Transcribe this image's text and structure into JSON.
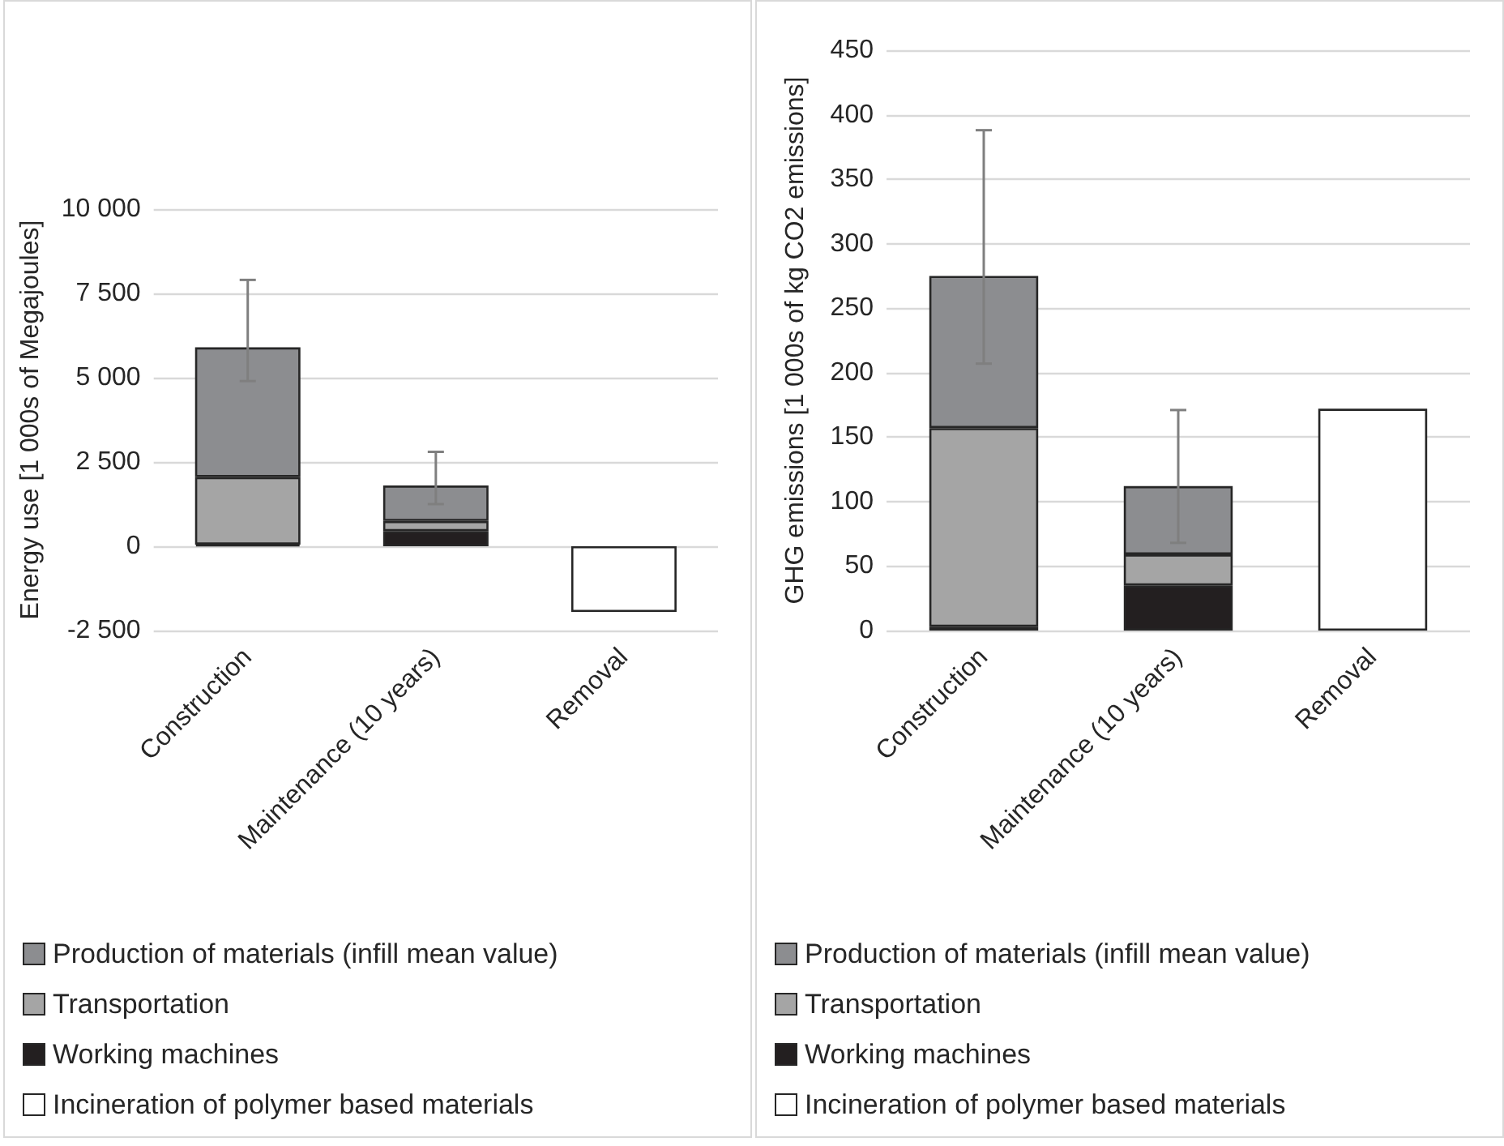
{
  "chart_data": [
    {
      "type": "bar",
      "stacked": true,
      "categories": [
        "Construction",
        "Maintenance (10 years)",
        "Removal"
      ],
      "ylabel": "Energy use [1 000s of Megajoules]",
      "ylim": [
        -2500,
        10000
      ],
      "yticks": [
        {
          "value": -2500,
          "label": "-2 500"
        },
        0,
        {
          "value": 2500,
          "label": "2 500"
        },
        {
          "value": 5000,
          "label": "5 000"
        },
        {
          "value": 7500,
          "label": "7 500"
        },
        {
          "value": 10000,
          "label": "10 000"
        }
      ],
      "grid": "y",
      "legend": "bottom",
      "series": [
        {
          "name": "Working machines",
          "color": "#231f20",
          "values": [
            50,
            450,
            0
          ]
        },
        {
          "name": "Transportation",
          "color": "#a5a5a5",
          "values": [
            2000,
            300,
            0
          ]
        },
        {
          "name": "Production of materials (infill mean value)",
          "color": "#8c8d90",
          "values": [
            3850,
            1050,
            0
          ],
          "errors": [
            [
              4900,
              7900
            ],
            [
              1250,
              2800
            ],
            null
          ]
        },
        {
          "name": "Incineration of polymer based materials",
          "color": "#ffffff",
          "values": [
            0,
            0,
            -1950
          ]
        }
      ]
    },
    {
      "type": "bar",
      "stacked": true,
      "categories": [
        "Construction",
        "Maintenance (10 years)",
        "Removal"
      ],
      "ylabel": "GHG emissions [1 000s of kg CO2 emissions]",
      "ylim": [
        0,
        450
      ],
      "yticks": [
        0,
        50,
        100,
        150,
        200,
        250,
        300,
        350,
        400,
        450
      ],
      "grid": "y",
      "legend": "bottom",
      "series": [
        {
          "name": "Working machines",
          "color": "#231f20",
          "values": [
            3,
            35,
            0
          ]
        },
        {
          "name": "Transportation",
          "color": "#a5a5a5",
          "values": [
            154,
            24,
            0
          ]
        },
        {
          "name": "Production of materials (infill mean value)",
          "color": "#8c8d90",
          "values": [
            118,
            53,
            0
          ],
          "errors": [
            [
              207,
              388
            ],
            [
              68,
              171
            ],
            null
          ]
        },
        {
          "name": "Incineration of polymer based materials",
          "color": "#ffffff",
          "values": [
            0,
            0,
            172
          ]
        }
      ]
    }
  ]
}
